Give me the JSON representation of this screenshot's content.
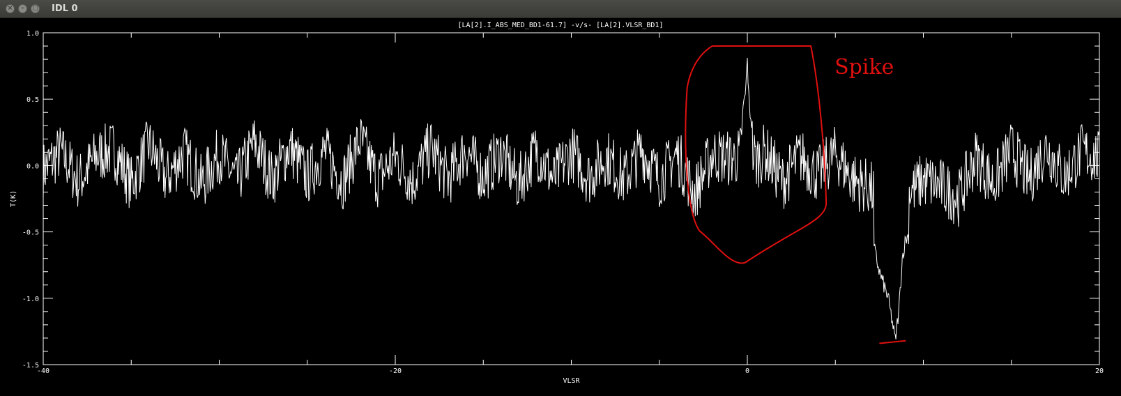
{
  "window": {
    "title": "IDL 0",
    "buttons": [
      {
        "name": "close",
        "glyph": "×"
      },
      {
        "name": "minimize",
        "glyph": "–"
      },
      {
        "name": "maximize",
        "glyph": "□"
      }
    ]
  },
  "chart_data": {
    "type": "line",
    "title": "[LA[2].I_ABS_MED_BD1-61.7] -v/s- [LA[2].VLSR_BD1]",
    "xlabel": "VLSR",
    "ylabel": "T(K)",
    "xlim": [
      -40,
      20
    ],
    "ylim": [
      -1.5,
      1.0
    ],
    "xticks": [
      -40,
      -20,
      0,
      20
    ],
    "xtick_labels": [
      "-40",
      "-20",
      "0",
      "20"
    ],
    "yticks": [
      -1.5,
      -1.0,
      -0.5,
      0.0,
      0.5,
      1.0
    ],
    "ytick_labels": [
      "-1.5",
      "-1.0",
      "-0.5",
      "0.0",
      "0.5",
      "1.0"
    ],
    "grid": false,
    "colors": {
      "background": "#000000",
      "line": "#ffffff",
      "annotation": "#e0100f"
    },
    "series": [
      {
        "x": [
          -40.0,
          -39.0,
          -38.0,
          -37.0,
          -36.0,
          -35.0,
          -34.0,
          -33.0,
          -32.0,
          -31.0,
          -30.0,
          -29.0,
          -28.0,
          -27.0,
          -26.0,
          -25.0,
          -24.0,
          -23.0,
          -22.0,
          -21.0,
          -20.0,
          -19.0,
          -18.0,
          -17.0,
          -16.0,
          -15.0,
          -14.0,
          -13.0,
          -12.0,
          -11.0,
          -10.0,
          -9.0,
          -8.0,
          -7.0,
          -6.0,
          -5.0,
          -4.0,
          -3.0,
          -2.0,
          -1.0,
          -0.5,
          -0.1,
          0.0,
          0.1,
          0.5,
          1.0,
          2.0,
          3.0,
          4.0,
          5.0,
          6.0,
          7.0,
          7.5,
          8.0,
          8.2,
          8.4,
          8.6,
          8.8,
          9.0,
          9.5,
          10.0,
          11.0,
          12.0,
          13.0,
          14.0,
          15.0,
          16.0,
          17.0,
          18.0,
          19.0,
          20.0
        ],
        "y": [
          -0.1,
          0.3,
          -0.35,
          0.2,
          0.35,
          -0.4,
          0.45,
          -0.3,
          0.3,
          -0.4,
          0.25,
          -0.35,
          0.5,
          -0.3,
          0.4,
          -0.25,
          0.3,
          -0.35,
          0.55,
          -0.3,
          0.2,
          -0.35,
          0.4,
          -0.3,
          0.35,
          -0.25,
          0.3,
          -0.4,
          0.35,
          -0.3,
          0.3,
          -0.25,
          0.2,
          -0.3,
          0.35,
          -0.3,
          0.25,
          -0.6,
          0.25,
          0.15,
          0.2,
          0.55,
          0.8,
          0.45,
          0.1,
          0.3,
          -0.35,
          0.2,
          -0.2,
          0.25,
          -0.3,
          -0.5,
          -0.8,
          -1.0,
          -1.15,
          -1.32,
          -1.1,
          -0.7,
          -0.55,
          -0.5,
          -0.3,
          -0.45,
          -0.7,
          0.2,
          -0.4,
          0.35,
          -0.3,
          0.4,
          -0.25,
          0.3,
          0.15
        ]
      }
    ],
    "annotations": [
      {
        "type": "loop",
        "label": "Spike",
        "around_x": [
          -3.5,
          2.5
        ],
        "around_y": [
          -0.73,
          0.9
        ]
      },
      {
        "type": "underline",
        "x": [
          7.5,
          9.0
        ],
        "y": [
          -1.34,
          -1.32
        ]
      }
    ]
  }
}
